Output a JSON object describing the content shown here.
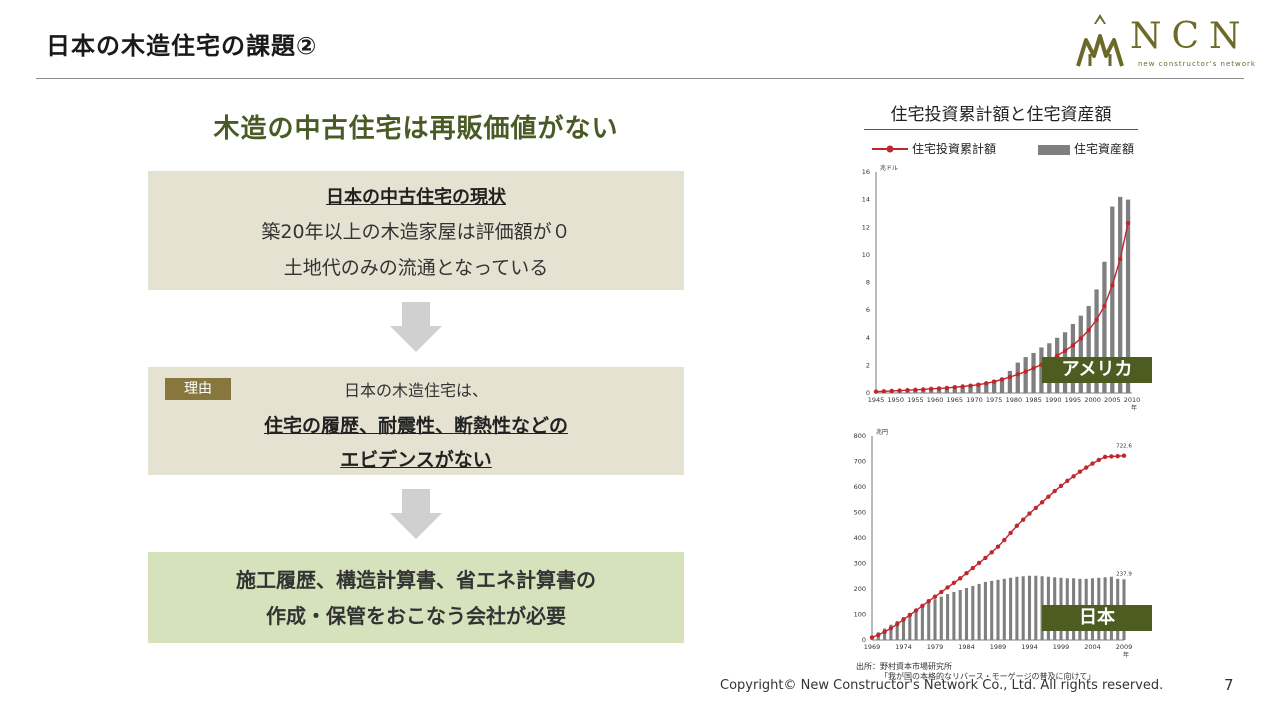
{
  "slide": {
    "title": "日本の木造住宅の課題②",
    "logo_text": "NCN",
    "logo_sub": "new constructor's network",
    "heading": "木造の中古住宅は再販価値がない",
    "box1": {
      "title": "日本の中古住宅の現状",
      "line1": "築20年以上の木造家屋は評価額が０",
      "line2": "土地代のみの流通となっている"
    },
    "box2": {
      "badge": "理由",
      "line1": "日本の木造住宅は、",
      "line2": "住宅の履歴、耐震性、断熱性などの",
      "line3": "エビデンスがない"
    },
    "box3": {
      "line1": "施工履歴、構造計算書、省エネ計算書の",
      "line2": "作成・保管をおこなう会社が必要"
    },
    "copyright": "Copyright© New Constructor's Network Co., Ltd. All rights reserved.",
    "page_number": "7",
    "source_line1": "出所：野村資本市場研究所",
    "source_line2": "「我が国の本格的なリバース・モーゲージの普及に向けて」"
  },
  "colors": {
    "line_series": "#c0272d",
    "bar_series": "#7f7f7f",
    "tag_bg": "#4e5b21",
    "accent_text": "#4a5a24"
  },
  "chart_panel": {
    "title": "住宅投資累計額と住宅資産額",
    "legend_line": "住宅投資累計額",
    "legend_bar": "住宅資産額"
  },
  "chart_data": [
    {
      "type": "bar",
      "region_label": "アメリカ",
      "unit": "兆ドル",
      "xlabel": "年",
      "ylim": [
        0,
        16
      ],
      "yticks": [
        "0",
        "2",
        "4",
        "6",
        "8",
        "10",
        "12",
        "14",
        "16"
      ],
      "xticks": [
        "1945",
        "1950",
        "1955",
        "1960",
        "1965",
        "1970",
        "1975",
        "1980",
        "1985",
        "1990",
        "1995",
        "2000",
        "2005",
        "2010"
      ],
      "x": [
        1945,
        1947,
        1949,
        1951,
        1953,
        1955,
        1957,
        1959,
        1961,
        1963,
        1965,
        1967,
        1969,
        1971,
        1973,
        1975,
        1977,
        1979,
        1981,
        1983,
        1985,
        1987,
        1989,
        1991,
        1993,
        1995,
        1997,
        1999,
        2001,
        2003,
        2005,
        2007,
        2009
      ],
      "series": [
        {
          "name": "住宅投資累計額",
          "kind": "line",
          "values": [
            0.1,
            0.12,
            0.15,
            0.18,
            0.2,
            0.23,
            0.26,
            0.3,
            0.33,
            0.37,
            0.42,
            0.47,
            0.53,
            0.6,
            0.7,
            0.82,
            0.98,
            1.15,
            1.35,
            1.55,
            1.8,
            2.05,
            2.35,
            2.7,
            3.05,
            3.45,
            3.95,
            4.55,
            5.3,
            6.3,
            7.8,
            9.7,
            12.3
          ]
        },
        {
          "name": "住宅資産額",
          "kind": "bar",
          "values": [
            0.1,
            0.12,
            0.15,
            0.18,
            0.2,
            0.25,
            0.28,
            0.32,
            0.35,
            0.4,
            0.45,
            0.5,
            0.6,
            0.7,
            0.8,
            0.95,
            1.1,
            1.6,
            2.2,
            2.6,
            2.9,
            3.3,
            3.6,
            4.0,
            4.4,
            5.0,
            5.6,
            6.3,
            7.5,
            9.5,
            13.5,
            14.2,
            14.0
          ]
        }
      ]
    },
    {
      "type": "bar",
      "region_label": "日本",
      "unit": "兆円",
      "xlabel": "年",
      "ylim": [
        0,
        800
      ],
      "yticks": [
        "0",
        "100",
        "200",
        "300",
        "400",
        "500",
        "600",
        "700",
        "800"
      ],
      "xticks": [
        "1969",
        "1974",
        "1979",
        "1984",
        "1989",
        "1994",
        "1999",
        "2004",
        "2009"
      ],
      "x": [
        1969,
        1970,
        1971,
        1972,
        1973,
        1974,
        1975,
        1976,
        1977,
        1978,
        1979,
        1980,
        1981,
        1982,
        1983,
        1984,
        1985,
        1986,
        1987,
        1988,
        1989,
        1990,
        1991,
        1992,
        1993,
        1994,
        1995,
        1996,
        1997,
        1998,
        1999,
        2000,
        2001,
        2002,
        2003,
        2004,
        2005,
        2006,
        2007,
        2008,
        2009
      ],
      "series": [
        {
          "name": "住宅投資累計額",
          "kind": "line",
          "values": [
            10,
            20,
            32,
            46,
            62,
            80,
            98,
            116,
            134,
            152,
            170,
            188,
            206,
            224,
            242,
            262,
            282,
            302,
            322,
            344,
            366,
            392,
            420,
            448,
            472,
            496,
            518,
            540,
            562,
            584,
            604,
            624,
            642,
            660,
            676,
            692,
            706,
            718,
            720,
            721,
            722.6
          ]
        },
        {
          "name": "住宅資産額",
          "kind": "bar",
          "values": [
            15,
            30,
            45,
            60,
            75,
            90,
            105,
            120,
            135,
            150,
            160,
            170,
            180,
            188,
            196,
            204,
            212,
            220,
            228,
            232,
            236,
            240,
            244,
            248,
            250,
            252,
            252,
            250,
            248,
            246,
            244,
            242,
            242,
            240,
            240,
            242,
            244,
            246,
            248,
            240,
            237.9
          ]
        }
      ],
      "annotations": [
        "722.6",
        "237.9"
      ]
    }
  ]
}
